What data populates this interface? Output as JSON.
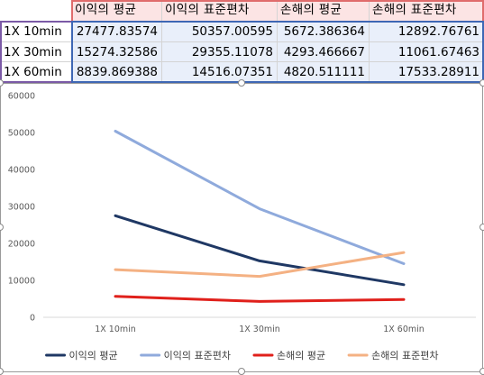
{
  "table": {
    "headers": [
      "",
      "이익의 평균",
      "이익의 표준편차",
      "손해의 평균",
      "손해의 표준편차"
    ],
    "rows": [
      {
        "label": "1X 10min",
        "values": [
          "27477.83574",
          "50357.00595",
          "5672.386364",
          "12892.76761"
        ]
      },
      {
        "label": "1X 30min",
        "values": [
          "15274.32586",
          "29355.11078",
          "4293.466667",
          "11061.67463"
        ]
      },
      {
        "label": "1X 60min",
        "values": [
          "8839.869388",
          "14516.07351",
          "4820.511111",
          "17533.28911"
        ]
      }
    ]
  },
  "chart_data": {
    "type": "line",
    "categories": [
      "1X 10min",
      "1X 30min",
      "1X 60min"
    ],
    "ylim": [
      0,
      60000
    ],
    "yticks": [
      "0",
      "10000",
      "20000",
      "30000",
      "40000",
      "50000",
      "60000"
    ],
    "grid": false,
    "legend": "bottom",
    "series": [
      {
        "name": "이익의 평균",
        "color": "#1f3864",
        "values": [
          27477.83574,
          15274.32586,
          8839.869388
        ]
      },
      {
        "name": "이익의 표준편차",
        "color": "#8faadc",
        "values": [
          50357.00595,
          29355.11078,
          14516.07351
        ]
      },
      {
        "name": "손해의 평균",
        "color": "#e0201b",
        "values": [
          5672.386364,
          4293.466667,
          4820.511111
        ]
      },
      {
        "name": "손해의 표준편차",
        "color": "#f4b183",
        "values": [
          12892.76761,
          11061.67463,
          17533.28911
        ]
      }
    ]
  }
}
